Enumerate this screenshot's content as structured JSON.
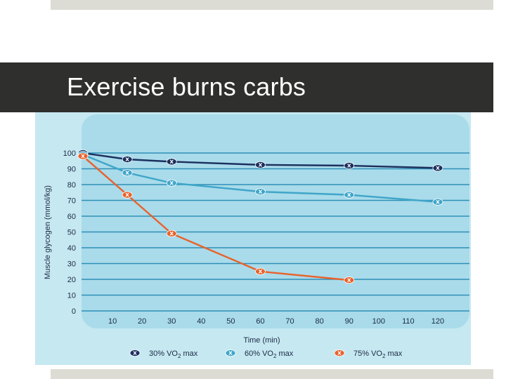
{
  "slide": {
    "title": "Exercise burns carbs"
  },
  "colors": {
    "series_30": "#1c2f5e",
    "series_60": "#3fa6c9",
    "series_75": "#e8622c",
    "plot_bg": "#a9dbea",
    "frame_bg": "#c6e8f1",
    "grid": "#2f8fb8"
  },
  "chart_data": {
    "type": "line",
    "title": "",
    "xlabel": "Time (min)",
    "ylabel": "Muscle glycogen (mmol/kg)",
    "xlim": [
      0,
      125
    ],
    "ylim": [
      0,
      100
    ],
    "xticks": [
      10,
      20,
      30,
      40,
      50,
      60,
      70,
      80,
      90,
      100,
      110,
      120
    ],
    "yticks": [
      0,
      10,
      20,
      30,
      40,
      50,
      60,
      70,
      80,
      90,
      100
    ],
    "grid": true,
    "legend_position": "bottom",
    "series": [
      {
        "name": "30% VO2 max",
        "legend_label": "30% VO",
        "legend_sub": "2",
        "legend_suffix": " max",
        "x": [
          0,
          15,
          30,
          60,
          90,
          120
        ],
        "y": [
          100,
          96,
          94.5,
          92.5,
          92,
          90.5
        ]
      },
      {
        "name": "60% VO2 max",
        "legend_label": "60% VO",
        "legend_sub": "2",
        "legend_suffix": " max",
        "x": [
          0,
          15,
          30,
          60,
          90,
          120
        ],
        "y": [
          99,
          87.5,
          81,
          75.5,
          73.5,
          69
        ]
      },
      {
        "name": "75% VO2 max",
        "legend_label": "75% VO",
        "legend_sub": "2",
        "legend_suffix": " max",
        "x": [
          0,
          15,
          30,
          60,
          90
        ],
        "y": [
          98,
          73.5,
          49,
          25,
          19.5
        ]
      }
    ]
  }
}
